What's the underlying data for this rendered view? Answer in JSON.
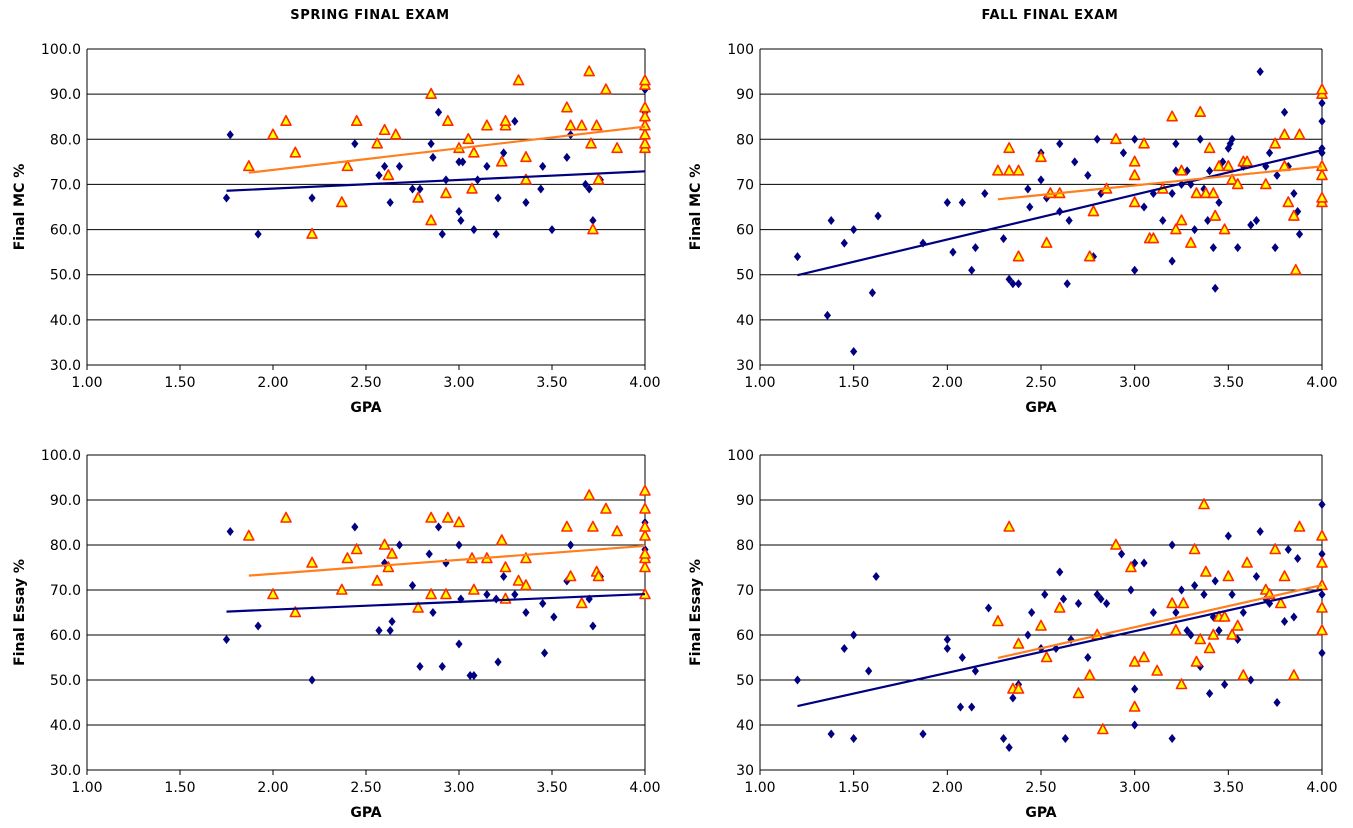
{
  "columns": {
    "spring_title": "SPRING FINAL EXAM",
    "fall_title": "FALL FINAL EXAM"
  },
  "colors": {
    "diamond": "#000080",
    "triangle_fill": "#FFFF00",
    "triangle_stroke": "#FF2A00",
    "trend_blue": "#000080",
    "trend_orange": "#FF7F1E",
    "grid": "#000000"
  },
  "chart_data": [
    {
      "type": "scatter",
      "title": "",
      "xlabel": "GPA",
      "ylabel": "Final MC %",
      "xlim": [
        1.0,
        4.0
      ],
      "ylim": [
        30,
        100
      ],
      "x_ticks": [
        "1.00",
        "1.50",
        "2.00",
        "2.50",
        "3.00",
        "3.50",
        "4.00"
      ],
      "y_ticks": [
        "30.0",
        "40.0",
        "50.0",
        "60.0",
        "70.0",
        "80.0",
        "90.0",
        "100.0"
      ],
      "grid": "horizontal",
      "series": [
        {
          "marker": "diamond",
          "color": "#000080",
          "x": [
            1.75,
            1.77,
            1.92,
            2.21,
            2.44,
            2.57,
            2.6,
            2.63,
            2.68,
            2.75,
            2.79,
            2.85,
            2.86,
            2.89,
            2.91,
            2.93,
            3.0,
            3.0,
            3.01,
            3.02,
            3.08,
            3.1,
            3.15,
            3.2,
            3.21,
            3.24,
            3.3,
            3.36,
            3.44,
            3.45,
            3.5,
            3.58,
            3.6,
            3.68,
            3.7,
            3.72,
            3.76,
            4.0,
            4.0,
            4.0
          ],
          "y": [
            67,
            81,
            59,
            67,
            79,
            72,
            74,
            66,
            74,
            69,
            69,
            79,
            76,
            86,
            59,
            71,
            75,
            64,
            62,
            75,
            60,
            71,
            74,
            59,
            67,
            77,
            84,
            66,
            69,
            74,
            60,
            76,
            81,
            70,
            69,
            62,
            71,
            79,
            86,
            91
          ]
        },
        {
          "marker": "triangle",
          "color": "#FFFF00",
          "x": [
            1.87,
            2.0,
            2.07,
            2.12,
            2.21,
            2.37,
            2.4,
            2.45,
            2.56,
            2.6,
            2.62,
            2.66,
            2.78,
            2.85,
            2.85,
            2.93,
            2.94,
            3.0,
            3.05,
            3.07,
            3.08,
            3.15,
            3.23,
            3.25,
            3.25,
            3.32,
            3.36,
            3.36,
            3.58,
            3.6,
            3.66,
            3.7,
            3.71,
            3.72,
            3.74,
            3.75,
            3.79,
            3.85,
            4.0,
            4.0,
            4.0,
            4.0,
            4.0,
            4.0,
            4.0,
            4.0
          ],
          "y": [
            74,
            81,
            84,
            77,
            59,
            66,
            74,
            84,
            79,
            82,
            72,
            81,
            67,
            90,
            62,
            68,
            84,
            78,
            80,
            69,
            77,
            83,
            75,
            83,
            84,
            93,
            71,
            76,
            87,
            83,
            83,
            95,
            79,
            60,
            83,
            71,
            91,
            78,
            78,
            79,
            81,
            83,
            85,
            87,
            92,
            93
          ]
        }
      ],
      "trendlines": [
        {
          "color": "#000080",
          "x": [
            1.75,
            4.0
          ],
          "y": [
            68.6,
            72.9
          ]
        },
        {
          "color": "#FF7F1E",
          "x": [
            1.87,
            4.0
          ],
          "y": [
            72.6,
            82.8
          ]
        }
      ]
    },
    {
      "type": "scatter",
      "title": "",
      "xlabel": "GPA",
      "ylabel": "Final MC %",
      "xlim": [
        1.0,
        4.0
      ],
      "ylim": [
        30,
        100
      ],
      "x_ticks": [
        "1.00",
        "1.50",
        "2.00",
        "2.50",
        "3.00",
        "3.50",
        "4.00"
      ],
      "y_ticks": [
        "30",
        "40",
        "50",
        "60",
        "70",
        "80",
        "90",
        "100"
      ],
      "grid": "horizontal",
      "series": [
        {
          "marker": "diamond",
          "color": "#000080",
          "x": [
            1.2,
            1.36,
            1.38,
            1.45,
            1.5,
            1.5,
            1.6,
            1.63,
            1.87,
            2.0,
            2.03,
            2.08,
            2.13,
            2.15,
            2.2,
            2.3,
            2.33,
            2.35,
            2.38,
            2.43,
            2.44,
            2.5,
            2.5,
            2.53,
            2.6,
            2.6,
            2.64,
            2.65,
            2.68,
            2.75,
            2.78,
            2.8,
            2.82,
            2.85,
            2.94,
            3.0,
            3.0,
            3.0,
            3.05,
            3.1,
            3.15,
            3.2,
            3.2,
            3.22,
            3.22,
            3.25,
            3.28,
            3.3,
            3.32,
            3.35,
            3.37,
            3.39,
            3.4,
            3.42,
            3.43,
            3.45,
            3.47,
            3.5,
            3.51,
            3.52,
            3.55,
            3.58,
            3.62,
            3.65,
            3.67,
            3.7,
            3.72,
            3.75,
            3.76,
            3.8,
            3.8,
            3.82,
            3.85,
            3.87,
            3.88,
            4.0,
            4.0,
            4.0,
            4.0
          ],
          "y": [
            54,
            41,
            62,
            57,
            60,
            33,
            46,
            63,
            57,
            66,
            55,
            66,
            51,
            56,
            68,
            58,
            49,
            48,
            48,
            69,
            65,
            71,
            77,
            67,
            79,
            64,
            48,
            62,
            75,
            72,
            54,
            80,
            68,
            69,
            77,
            80,
            51,
            66,
            65,
            68,
            62,
            68,
            53,
            79,
            73,
            70,
            73,
            70,
            60,
            80,
            69,
            62,
            73,
            56,
            47,
            66,
            75,
            78,
            79,
            80,
            56,
            74,
            61,
            62,
            95,
            74,
            77,
            56,
            72,
            81,
            86,
            74,
            68,
            64,
            59,
            77,
            78,
            84,
            88
          ]
        },
        {
          "marker": "triangle",
          "color": "#FFFF00",
          "x": [
            2.27,
            2.33,
            2.33,
            2.38,
            2.38,
            2.5,
            2.53,
            2.55,
            2.6,
            2.76,
            2.78,
            2.85,
            2.9,
            3.0,
            3.0,
            3.0,
            3.05,
            3.08,
            3.1,
            3.15,
            3.2,
            3.22,
            3.25,
            3.25,
            3.3,
            3.33,
            3.35,
            3.38,
            3.4,
            3.42,
            3.43,
            3.45,
            3.48,
            3.5,
            3.52,
            3.55,
            3.58,
            3.6,
            3.7,
            3.75,
            3.8,
            3.8,
            3.82,
            3.85,
            3.86,
            3.88,
            4.0,
            4.0,
            4.0,
            4.0,
            4.0,
            4.0
          ],
          "y": [
            73,
            78,
            73,
            73,
            54,
            76,
            57,
            68,
            68,
            54,
            64,
            69,
            80,
            75,
            72,
            66,
            79,
            58,
            58,
            69,
            85,
            60,
            73,
            62,
            57,
            68,
            86,
            68,
            78,
            68,
            63,
            74,
            60,
            74,
            71,
            70,
            75,
            75,
            70,
            79,
            81,
            74,
            66,
            63,
            51,
            81,
            66,
            67,
            74,
            72,
            90,
            91
          ]
        }
      ],
      "trendlines": [
        {
          "color": "#000080",
          "x": [
            1.2,
            4.0
          ],
          "y": [
            49.9,
            77.6
          ]
        },
        {
          "color": "#FF7F1E",
          "x": [
            2.27,
            4.0
          ],
          "y": [
            66.7,
            74.0
          ]
        }
      ]
    },
    {
      "type": "scatter",
      "title": "",
      "xlabel": "GPA",
      "ylabel": "Final Essay %",
      "xlim": [
        1.0,
        4.0
      ],
      "ylim": [
        30,
        100
      ],
      "x_ticks": [
        "1.00",
        "1.50",
        "2.00",
        "2.50",
        "3.00",
        "3.50",
        "4.00"
      ],
      "y_ticks": [
        "30.0",
        "40.0",
        "50.0",
        "60.0",
        "70.0",
        "80.0",
        "90.0",
        "100.0"
      ],
      "grid": "horizontal",
      "series": [
        {
          "marker": "diamond",
          "color": "#000080",
          "x": [
            1.75,
            1.77,
            1.92,
            2.21,
            2.44,
            2.57,
            2.6,
            2.63,
            2.64,
            2.68,
            2.75,
            2.79,
            2.84,
            2.86,
            2.89,
            2.91,
            2.93,
            3.0,
            3.0,
            3.01,
            3.06,
            3.08,
            3.15,
            3.2,
            3.21,
            3.24,
            3.3,
            3.36,
            3.45,
            3.46,
            3.51,
            3.58,
            3.6,
            3.7,
            3.72,
            3.76,
            4.0,
            4.0,
            4.0
          ],
          "y": [
            59,
            83,
            62,
            50,
            84,
            61,
            76,
            61,
            63,
            80,
            71,
            53,
            78,
            65,
            84,
            53,
            76,
            80,
            58,
            68,
            51,
            51,
            69,
            68,
            54,
            73,
            69,
            65,
            67,
            56,
            64,
            72,
            80,
            68,
            62,
            73,
            79,
            84,
            85
          ]
        },
        {
          "marker": "triangle",
          "color": "#FFFF00",
          "x": [
            1.87,
            2.0,
            2.07,
            2.12,
            2.21,
            2.37,
            2.4,
            2.45,
            2.56,
            2.6,
            2.62,
            2.64,
            2.78,
            2.85,
            2.85,
            2.93,
            2.94,
            3.0,
            3.07,
            3.08,
            3.15,
            3.23,
            3.25,
            3.25,
            3.32,
            3.36,
            3.36,
            3.58,
            3.6,
            3.66,
            3.7,
            3.72,
            3.74,
            3.75,
            3.79,
            3.85,
            4.0,
            4.0,
            4.0,
            4.0,
            4.0,
            4.0,
            4.0,
            4.0
          ],
          "y": [
            82,
            69,
            86,
            65,
            76,
            70,
            77,
            79,
            72,
            80,
            75,
            78,
            66,
            86,
            69,
            69,
            86,
            85,
            77,
            70,
            77,
            81,
            68,
            75,
            72,
            71,
            77,
            84,
            73,
            67,
            91,
            84,
            74,
            73,
            88,
            83,
            69,
            75,
            77,
            78,
            82,
            84,
            88,
            92
          ]
        }
      ],
      "trendlines": [
        {
          "color": "#000080",
          "x": [
            1.75,
            4.0
          ],
          "y": [
            65.2,
            69.1
          ]
        },
        {
          "color": "#FF7F1E",
          "x": [
            1.87,
            4.0
          ],
          "y": [
            73.2,
            79.8
          ]
        }
      ]
    },
    {
      "type": "scatter",
      "title": "",
      "xlabel": "GPA",
      "ylabel": "Final Essay %",
      "xlim": [
        1.0,
        4.0
      ],
      "ylim": [
        30,
        100
      ],
      "x_ticks": [
        "1.00",
        "1.50",
        "2.00",
        "2.50",
        "3.00",
        "3.50",
        "4.00"
      ],
      "y_ticks": [
        "30",
        "40",
        "50",
        "60",
        "70",
        "80",
        "90",
        "100"
      ],
      "grid": "horizontal",
      "series": [
        {
          "marker": "diamond",
          "color": "#000080",
          "x": [
            1.2,
            1.38,
            1.45,
            1.5,
            1.5,
            1.58,
            1.62,
            1.87,
            2.0,
            2.0,
            2.07,
            2.08,
            2.13,
            2.15,
            2.22,
            2.3,
            2.33,
            2.35,
            2.38,
            2.43,
            2.45,
            2.5,
            2.52,
            2.58,
            2.6,
            2.62,
            2.63,
            2.66,
            2.7,
            2.75,
            2.8,
            2.82,
            2.85,
            2.93,
            2.98,
            3.0,
            3.0,
            3.0,
            3.05,
            3.1,
            3.2,
            3.2,
            3.22,
            3.25,
            3.28,
            3.3,
            3.32,
            3.35,
            3.37,
            3.4,
            3.42,
            3.43,
            3.45,
            3.48,
            3.5,
            3.52,
            3.55,
            3.58,
            3.62,
            3.65,
            3.67,
            3.7,
            3.72,
            3.76,
            3.8,
            3.82,
            3.85,
            3.87,
            4.0,
            4.0,
            4.0,
            4.0
          ],
          "y": [
            50,
            38,
            57,
            37,
            60,
            52,
            73,
            38,
            57,
            59,
            44,
            55,
            44,
            52,
            66,
            37,
            35,
            46,
            49,
            60,
            65,
            57,
            69,
            57,
            74,
            68,
            37,
            59,
            67,
            55,
            69,
            68,
            67,
            78,
            70,
            40,
            48,
            76,
            76,
            65,
            80,
            37,
            65,
            70,
            61,
            60,
            71,
            53,
            69,
            47,
            64,
            72,
            61,
            49,
            82,
            69,
            59,
            65,
            50,
            73,
            83,
            68,
            67,
            45,
            63,
            79,
            64,
            77,
            56,
            69,
            78,
            89
          ]
        },
        {
          "marker": "triangle",
          "color": "#FFFF00",
          "x": [
            2.27,
            2.33,
            2.35,
            2.38,
            2.38,
            2.5,
            2.53,
            2.6,
            2.7,
            2.76,
            2.8,
            2.83,
            2.9,
            2.98,
            3.0,
            3.0,
            3.05,
            3.12,
            3.2,
            3.22,
            3.25,
            3.26,
            3.32,
            3.33,
            3.35,
            3.37,
            3.38,
            3.4,
            3.42,
            3.45,
            3.48,
            3.5,
            3.52,
            3.55,
            3.58,
            3.6,
            3.7,
            3.72,
            3.75,
            3.78,
            3.8,
            3.85,
            3.88,
            4.0,
            4.0,
            4.0,
            4.0,
            4.0
          ],
          "y": [
            63,
            84,
            48,
            48,
            58,
            62,
            55,
            66,
            47,
            51,
            60,
            39,
            80,
            75,
            44,
            54,
            55,
            52,
            67,
            61,
            49,
            67,
            79,
            54,
            59,
            89,
            74,
            57,
            60,
            64,
            64,
            73,
            60,
            62,
            51,
            76,
            70,
            69,
            79,
            67,
            73,
            51,
            84,
            61,
            66,
            71,
            76,
            82
          ]
        }
      ],
      "trendlines": [
        {
          "color": "#000080",
          "x": [
            1.2,
            4.0
          ],
          "y": [
            44.2,
            70.1
          ]
        },
        {
          "color": "#FF7F1E",
          "x": [
            2.27,
            4.0
          ],
          "y": [
            54.9,
            71.1
          ]
        }
      ]
    }
  ]
}
